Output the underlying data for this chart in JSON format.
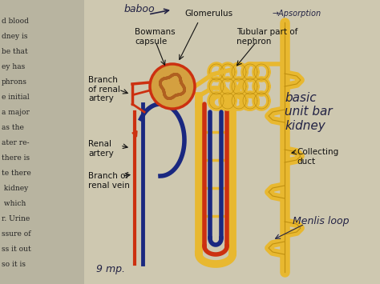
{
  "bg_color": "#cec8b0",
  "bg_left": "#b8b4a0",
  "colors": {
    "yellow": "#e8b830",
    "yellow_dark": "#c09010",
    "red": "#cc3010",
    "blue": "#1a2880",
    "glom_brown": "#b06020",
    "text": "#111111",
    "text_book": "#222222",
    "handwrite": "#222244"
  },
  "book_lines_left": [
    "d blood",
    "dney is",
    "be that",
    "ey has",
    "phrons",
    "e initial",
    "a major",
    "as the",
    "ater re-",
    "there is",
    "te there",
    " kidney",
    " which",
    "r. Urine",
    "ssure of",
    "ss it out",
    "so it is"
  ],
  "labels": {
    "glomerulus": "Glomerulus",
    "bowmans": "Bowmans\ncapsule",
    "tubular": "Tubular part of\nnephron",
    "branch_artery": "Branch\nof renal\nartery",
    "renal_artery": "Renal\nartery",
    "branch_vein": "Branch of\nrenal vein",
    "collecting": "Collecting\nduct",
    "handwrite1": "basic\nunit bar\nkidney",
    "handwrite2": "Menlis loop",
    "handwrite3": "9 mp.",
    "handwrite4": "→Apsorption"
  }
}
